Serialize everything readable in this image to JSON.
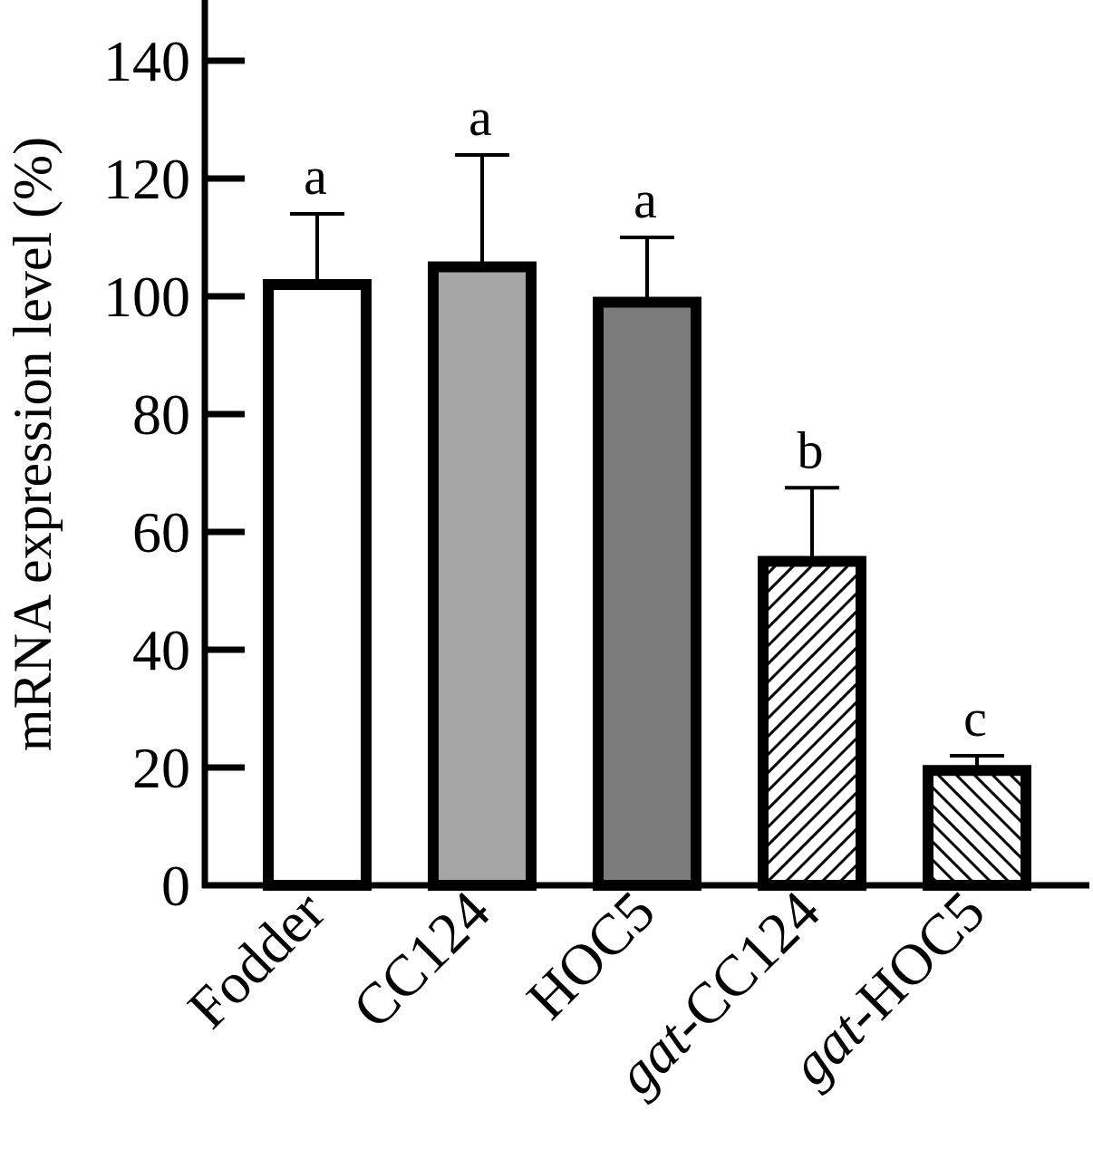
{
  "chart_data": {
    "type": "bar",
    "ylabel": "mRNA expression level (%)",
    "xlabel": "",
    "ylim": [
      0,
      150
    ],
    "yticks": [
      0,
      20,
      40,
      60,
      80,
      100,
      120,
      140
    ],
    "grid": false,
    "legend": "none",
    "categories": [
      {
        "prefix": "",
        "name": "Fodder"
      },
      {
        "prefix": "",
        "name": "CC124"
      },
      {
        "prefix": "",
        "name": "HOC5"
      },
      {
        "prefix": "gat",
        "name": "-CC124"
      },
      {
        "prefix": "gat",
        "name": "-HOC5"
      }
    ],
    "values": [
      102,
      105,
      99,
      55,
      19.5
    ],
    "errors": [
      12,
      19,
      11,
      12.5,
      2.5
    ],
    "significance": [
      "a",
      "a",
      "a",
      "b",
      "c"
    ],
    "fills": [
      "#ffffff",
      "#a6a6a6",
      "#7b7b7b",
      "hatch-forward",
      "hatch-back"
    ],
    "colors": {
      "stroke": "#000000",
      "background": "#ffffff"
    }
  }
}
